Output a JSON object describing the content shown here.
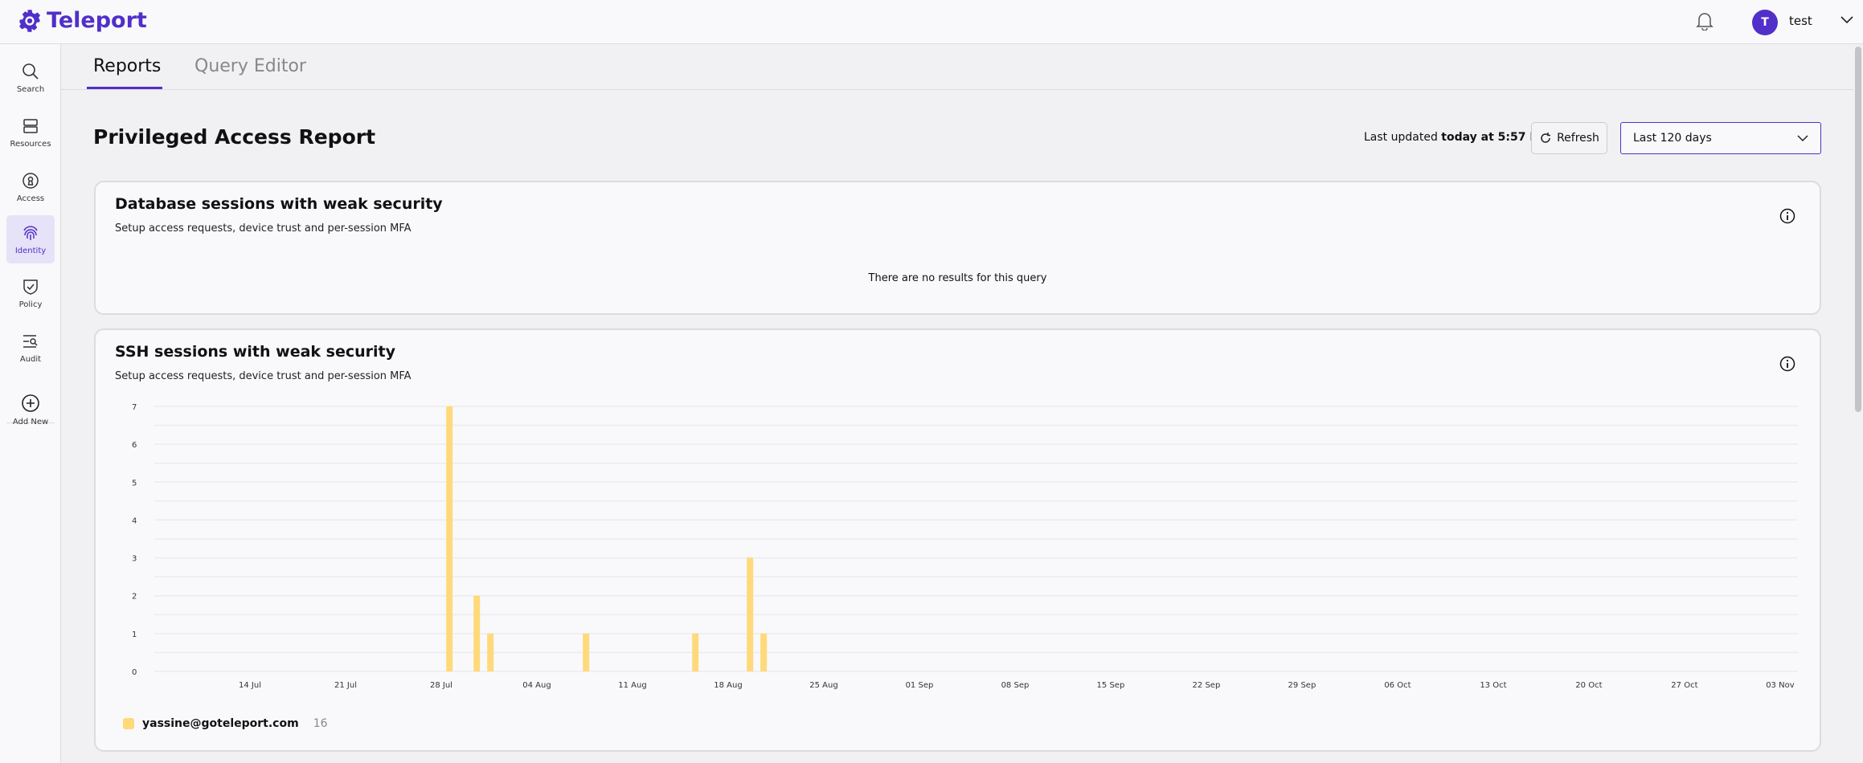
{
  "header": {
    "brand": "Teleport",
    "user_initial": "T",
    "username": "test",
    "accent": "#512fc9"
  },
  "sidebar": {
    "items": [
      {
        "label": "Search",
        "icon": "search-icon"
      },
      {
        "label": "Resources",
        "icon": "server-icon"
      },
      {
        "label": "Access",
        "icon": "keyhole-icon"
      },
      {
        "label": "Identity",
        "icon": "fingerprint-icon",
        "active": true
      },
      {
        "label": "Policy",
        "icon": "shield-check-icon"
      },
      {
        "label": "Audit",
        "icon": "list-search-icon"
      },
      {
        "label": "Add New",
        "icon": "plus-circle-icon"
      }
    ]
  },
  "tabs": [
    {
      "label": "Reports",
      "active": true
    },
    {
      "label": "Query Editor",
      "active": false
    }
  ],
  "report": {
    "title": "Privileged Access Report",
    "last_updated_prefix": "Last updated",
    "last_updated_value": "today at 5:57 PM",
    "refresh_label": "Refresh",
    "range": "Last 120 days"
  },
  "cards": [
    {
      "title": "Database sessions with weak security",
      "subtitle": "Setup access requests, device trust and per-session MFA",
      "empty": "There are no results for this query"
    },
    {
      "title": "SSH sessions with weak security",
      "subtitle": "Setup access requests, device trust and per-session MFA"
    }
  ],
  "chart_data": {
    "type": "bar",
    "ylim": [
      0,
      7
    ],
    "yticks": [
      "0",
      "1",
      "2",
      "3",
      "4",
      "5",
      "6",
      "7"
    ],
    "xticks": [
      "14 Jul",
      "21 Jul",
      "28 Jul",
      "04 Aug",
      "11 Aug",
      "18 Aug",
      "25 Aug",
      "01 Sep",
      "08 Sep",
      "15 Sep",
      "22 Sep",
      "29 Sep",
      "06 Oct",
      "13 Oct",
      "20 Oct",
      "27 Oct",
      "03 Nov"
    ],
    "x": [
      "28 Jul",
      "30 Jul",
      "31 Jul",
      "07 Aug",
      "15 Aug",
      "19 Aug",
      "20 Aug"
    ],
    "series": [
      {
        "name": "yassine@goteleport.com",
        "total": "16",
        "color": "#ffd97a",
        "values": [
          7,
          2,
          1,
          1,
          1,
          3,
          1
        ]
      }
    ],
    "grid": true,
    "legend": "bottom-left"
  }
}
